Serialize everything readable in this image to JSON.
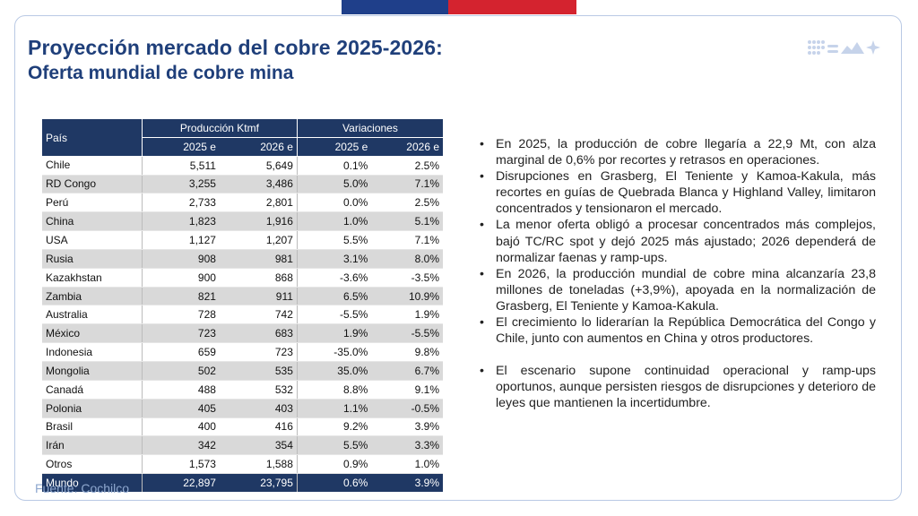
{
  "header": {
    "title": "Proyección mercado del cobre 2025-2026:",
    "subtitle": "Oferta mundial de cobre mina"
  },
  "colors": {
    "primary": "#1f3864",
    "title": "#1f3f7a",
    "flag_blue": "#1f3f8a",
    "flag_red": "#d4232f",
    "source": "#8fa8cf"
  },
  "brand_icon": "dots-mountains-star-icon",
  "table": {
    "country_header": "País",
    "production_header": "Producción Ktmf",
    "variation_header": "Variaciones",
    "subheaders": [
      "2025 e",
      "2026 e",
      "2025 e",
      "2026 e"
    ],
    "rows": [
      [
        "Chile",
        "5,511",
        "5,649",
        "0.1%",
        "2.5%"
      ],
      [
        "RD Congo",
        "3,255",
        "3,486",
        "5.0%",
        "7.1%"
      ],
      [
        "Perú",
        "2,733",
        "2,801",
        "0.0%",
        "2.5%"
      ],
      [
        "China",
        "1,823",
        "1,916",
        "1.0%",
        "5.1%"
      ],
      [
        "USA",
        "1,127",
        "1,207",
        "5.5%",
        "7.1%"
      ],
      [
        "Rusia",
        "908",
        "981",
        "3.1%",
        "8.0%"
      ],
      [
        "Kazakhstan",
        "900",
        "868",
        "-3.6%",
        "-3.5%"
      ],
      [
        "Zambia",
        "821",
        "911",
        "6.5%",
        "10.9%"
      ],
      [
        "Australia",
        "728",
        "742",
        "-5.5%",
        "1.9%"
      ],
      [
        "México",
        "723",
        "683",
        "1.9%",
        "-5.5%"
      ],
      [
        "Indonesia",
        "659",
        "723",
        "-35.0%",
        "9.8%"
      ],
      [
        "Mongolia",
        "502",
        "535",
        "35.0%",
        "6.7%"
      ],
      [
        "Canadá",
        "488",
        "532",
        "8.8%",
        "9.1%"
      ],
      [
        "Polonia",
        "405",
        "403",
        "1.1%",
        "-0.5%"
      ],
      [
        "Brasil",
        "400",
        "416",
        "9.2%",
        "3.9%"
      ],
      [
        "Irán",
        "342",
        "354",
        "5.5%",
        "3.3%"
      ],
      [
        "Otros",
        "1,573",
        "1,588",
        "0.9%",
        "1.0%"
      ]
    ],
    "total": [
      "Mundo",
      "22,897",
      "23,795",
      "0.6%",
      "3.9%"
    ]
  },
  "bullets": [
    "En 2025, la producción de cobre llegaría a 22,9 Mt, con alza marginal de 0,6% por recortes y retrasos en operaciones.",
    "Disrupciones en Grasberg, El Teniente y Kamoa-Kakula, más recortes en guías de Quebrada Blanca y Highland Valley, limitaron concentrados y tensionaron el mercado.",
    "La menor oferta obligó a procesar concentrados más complejos, bajó TC/RC spot y dejó 2025 más ajustado; 2026 dependerá de normalizar faenas y ramp-ups.",
    "En 2026, la producción mundial de cobre mina alcanzaría 23,8 millones de toneladas (+3,9%), apoyada en la normalización de Grasberg, El Teniente y Kamoa-Kakula.",
    "El crecimiento lo liderarían la República Democrática del Congo y Chile, junto con aumentos en China y otros productores.",
    "El escenario supone continuidad operacional y ramp-ups oportunos, aunque persisten riesgos de disrupciones y deterioro de leyes que mantienen la incertidumbre."
  ],
  "source": "Fuente: Cochilco"
}
